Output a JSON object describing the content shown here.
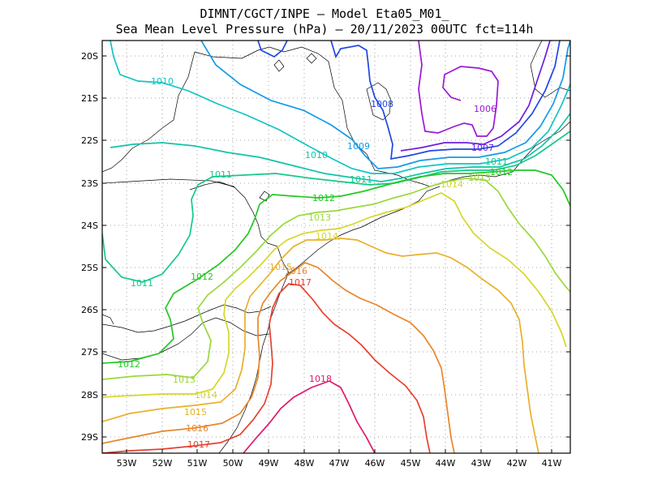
{
  "title_line1": "DIMNT/CGCT/INPE  —   Model Eta05_M01_",
  "title_line2": "Sea Mean Level Pressure (hPa) — 20/11/2023 00UTC fct=114h",
  "axes": {
    "lat_ticks": [
      "20S",
      "21S",
      "22S",
      "23S",
      "24S",
      "25S",
      "26S",
      "27S",
      "28S",
      "29S"
    ],
    "lon_ticks": [
      "53W",
      "52W",
      "51W",
      "50W",
      "49W",
      "48W",
      "47W",
      "46W",
      "45W",
      "44W",
      "43W",
      "42W",
      "41W"
    ]
  },
  "contour_labels": [
    {
      "text": "1010",
      "color": "#11c4c4"
    },
    {
      "text": "1008",
      "color": "#1e46e6"
    },
    {
      "text": "1006",
      "color": "#9b17d6"
    },
    {
      "text": "1010",
      "color": "#11c4a8"
    },
    {
      "text": "1009",
      "color": "#139ae8"
    },
    {
      "text": "1007",
      "color": "#6a1ee0"
    },
    {
      "text": "1011",
      "color": "#16c88a"
    },
    {
      "text": "1011",
      "color": "#16c88a"
    },
    {
      "text": "1012",
      "color": "#22c822"
    },
    {
      "text": "1011",
      "color": "#16c88a"
    },
    {
      "text": "1012",
      "color": "#22c822"
    },
    {
      "text": "1013",
      "color": "#9ad83a"
    },
    {
      "text": "1014",
      "color": "#d6d62a"
    },
    {
      "text": "1013",
      "color": "#9ad83a"
    },
    {
      "text": "1014",
      "color": "#d6d62a"
    },
    {
      "text": "1011",
      "color": "#16c88a"
    },
    {
      "text": "1012",
      "color": "#22c822"
    },
    {
      "text": "1015",
      "color": "#e8b02a"
    },
    {
      "text": "1016",
      "color": "#e8862a"
    },
    {
      "text": "1017",
      "color": "#e84030"
    },
    {
      "text": "1012",
      "color": "#22c822"
    },
    {
      "text": "1013",
      "color": "#9ad83a"
    },
    {
      "text": "1014",
      "color": "#d6d62a"
    },
    {
      "text": "1015",
      "color": "#e8b02a"
    },
    {
      "text": "1016",
      "color": "#e8862a"
    },
    {
      "text": "1017",
      "color": "#e84030"
    },
    {
      "text": "1018",
      "color": "#e0166e"
    }
  ]
}
